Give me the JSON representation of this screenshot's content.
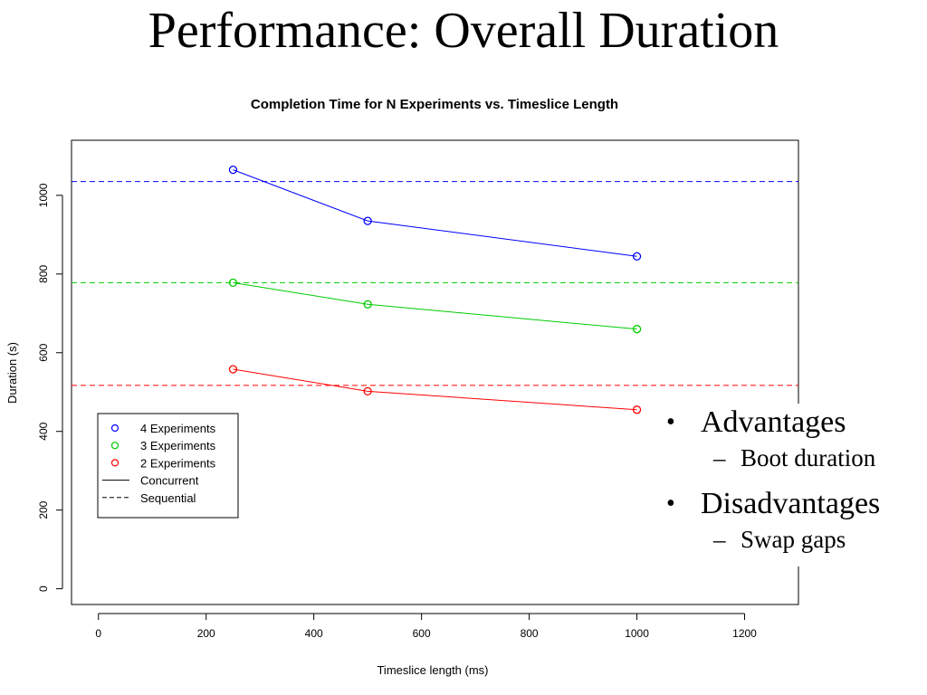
{
  "slide": {
    "title": "Performance: Overall Duration",
    "bullets": [
      {
        "label": "Advantages",
        "sub": "Boot duration"
      },
      {
        "label": "Disadvantages",
        "sub": "Swap gaps"
      }
    ],
    "bullet_char": "•",
    "dash_char": "–"
  },
  "chart_data": {
    "type": "line",
    "title": "Completion Time for N Experiments vs. Timeslice Length",
    "xlabel": "Timeslice length (ms)",
    "ylabel": "Duration (s)",
    "xlim": [
      -50,
      1300
    ],
    "ylim": [
      -40,
      1140
    ],
    "xticks": [
      0,
      200,
      400,
      600,
      800,
      1000,
      1200
    ],
    "yticks": [
      0,
      200,
      400,
      600,
      800,
      1000
    ],
    "series": [
      {
        "name": "4 Experiments",
        "color": "#0000ff",
        "x": [
          250,
          500,
          1000
        ],
        "y": [
          1065,
          935,
          845
        ],
        "sequential": 1035
      },
      {
        "name": "3 Experiments",
        "color": "#00cc00",
        "x": [
          250,
          500,
          1000
        ],
        "y": [
          778,
          723,
          660
        ],
        "sequential": 778
      },
      {
        "name": "2 Experiments",
        "color": "#ff0000",
        "x": [
          250,
          500,
          1000
        ],
        "y": [
          558,
          502,
          455
        ],
        "sequential": 517
      }
    ],
    "legend": {
      "placement": "bottom-left",
      "line_entries": [
        {
          "name": "Concurrent",
          "style": "solid"
        },
        {
          "name": "Sequential",
          "style": "dashed"
        }
      ]
    }
  }
}
